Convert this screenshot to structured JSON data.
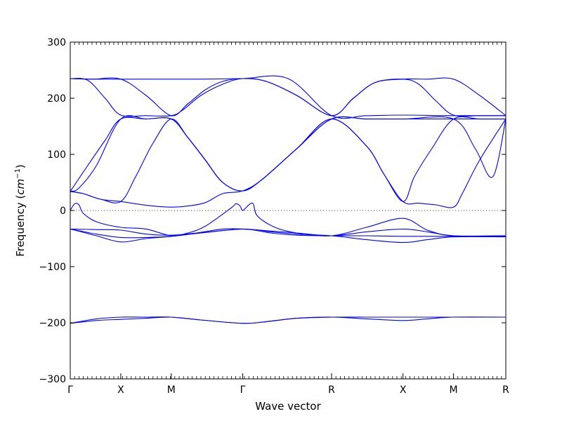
{
  "chart_data": {
    "type": "line",
    "title": "",
    "xlabel": "Wave vector",
    "ylabel_prefix": "Frequency (",
    "ylabel_math": "cm",
    "ylabel_sup": "−1",
    "ylabel_suffix": ")",
    "ylim": [
      -300,
      300
    ],
    "yticks": [
      300,
      200,
      100,
      0,
      -100,
      -200,
      -300
    ],
    "ytick_labels": [
      "300",
      "200",
      "100",
      "0",
      "−100",
      "−200",
      "−300"
    ],
    "xlim": [
      0,
      1.0
    ],
    "high_symmetry_points": [
      {
        "label": "Γ",
        "x": 0.0
      },
      {
        "label": "X",
        "x": 0.116
      },
      {
        "label": "M",
        "x": 0.232
      },
      {
        "label": "Γ",
        "x": 0.396
      },
      {
        "label": "R",
        "x": 0.6
      },
      {
        "label": "X",
        "x": 0.764
      },
      {
        "label": "M",
        "x": 0.88
      },
      {
        "label": "R",
        "x": 1.0
      }
    ],
    "zero_line": {
      "y": 0,
      "style": "dotted"
    },
    "grid": false,
    "line_color": "#0000ff",
    "series": [
      {
        "points": [
          [
            0,
            235
          ],
          [
            0.05,
            234
          ],
          [
            0.116,
            234
          ],
          [
            0.174,
            234
          ],
          [
            0.232,
            234
          ],
          [
            0.3,
            234
          ],
          [
            0.396,
            235
          ],
          [
            0.5,
            235
          ],
          [
            0.6,
            169
          ],
          [
            0.68,
            169
          ],
          [
            0.764,
            170
          ],
          [
            0.88,
            169
          ],
          [
            1.0,
            169
          ]
        ]
      },
      {
        "points": [
          [
            0,
            235
          ],
          [
            0.04,
            232
          ],
          [
            0.08,
            200
          ],
          [
            0.116,
            170
          ],
          [
            0.174,
            169
          ],
          [
            0.232,
            169
          ],
          [
            0.26,
            180
          ],
          [
            0.3,
            205
          ],
          [
            0.35,
            225
          ],
          [
            0.396,
            235
          ],
          [
            0.45,
            230
          ],
          [
            0.52,
            205
          ],
          [
            0.6,
            169
          ],
          [
            0.65,
            200
          ],
          [
            0.7,
            228
          ],
          [
            0.764,
            234
          ],
          [
            0.82,
            234
          ],
          [
            0.88,
            234
          ],
          [
            0.94,
            205
          ],
          [
            1.0,
            169
          ]
        ]
      },
      {
        "points": [
          [
            0,
            235
          ],
          [
            0.05,
            234
          ],
          [
            0.116,
            234
          ],
          [
            0.174,
            205
          ],
          [
            0.232,
            169
          ],
          [
            0.27,
            190
          ],
          [
            0.31,
            215
          ],
          [
            0.35,
            230
          ],
          [
            0.396,
            235
          ],
          [
            0.45,
            230
          ],
          [
            0.52,
            205
          ],
          [
            0.6,
            169
          ],
          [
            0.65,
            200
          ],
          [
            0.7,
            228
          ],
          [
            0.764,
            234
          ],
          [
            0.8,
            225
          ],
          [
            0.84,
            195
          ],
          [
            0.88,
            170
          ],
          [
            0.94,
            169
          ],
          [
            1.0,
            169
          ]
        ]
      },
      {
        "points": [
          [
            0,
            34
          ],
          [
            0.04,
            80
          ],
          [
            0.08,
            125
          ],
          [
            0.116,
            163
          ],
          [
            0.174,
            163
          ],
          [
            0.232,
            163
          ],
          [
            0.27,
            130
          ],
          [
            0.31,
            90
          ],
          [
            0.35,
            50
          ],
          [
            0.396,
            35
          ],
          [
            0.44,
            55
          ],
          [
            0.52,
            110
          ],
          [
            0.6,
            163
          ],
          [
            0.68,
            163
          ],
          [
            0.764,
            163
          ],
          [
            0.88,
            163
          ],
          [
            1.0,
            163
          ]
        ]
      },
      {
        "points": [
          [
            0,
            34
          ],
          [
            0.02,
            40
          ],
          [
            0.06,
            80
          ],
          [
            0.116,
            163
          ],
          [
            0.174,
            163
          ],
          [
            0.232,
            163
          ],
          [
            0.27,
            130
          ],
          [
            0.31,
            90
          ],
          [
            0.35,
            50
          ],
          [
            0.396,
            35
          ],
          [
            0.44,
            55
          ],
          [
            0.52,
            110
          ],
          [
            0.6,
            163
          ],
          [
            0.68,
            115
          ],
          [
            0.72,
            65
          ],
          [
            0.764,
            16
          ],
          [
            0.79,
            60
          ],
          [
            0.83,
            110
          ],
          [
            0.88,
            163
          ],
          [
            0.94,
            163
          ],
          [
            1.0,
            163
          ]
        ]
      },
      {
        "points": [
          [
            0,
            34
          ],
          [
            0.03,
            30
          ],
          [
            0.07,
            20
          ],
          [
            0.116,
            16
          ],
          [
            0.15,
            60
          ],
          [
            0.19,
            120
          ],
          [
            0.232,
            163
          ],
          [
            0.27,
            130
          ],
          [
            0.31,
            90
          ],
          [
            0.35,
            50
          ],
          [
            0.396,
            35
          ],
          [
            0.44,
            55
          ],
          [
            0.52,
            110
          ],
          [
            0.6,
            163
          ],
          [
            0.68,
            163
          ],
          [
            0.764,
            163
          ],
          [
            0.88,
            163
          ],
          [
            0.93,
            110
          ],
          [
            0.97,
            60
          ],
          [
            1.0,
            163
          ]
        ]
      },
      {
        "points": [
          [
            0,
            34
          ],
          [
            0.03,
            30
          ],
          [
            0.07,
            20
          ],
          [
            0.116,
            16
          ],
          [
            0.15,
            12
          ],
          [
            0.19,
            8
          ],
          [
            0.232,
            6
          ],
          [
            0.27,
            8
          ],
          [
            0.31,
            14
          ],
          [
            0.35,
            30
          ],
          [
            0.396,
            35
          ],
          [
            0.44,
            55
          ],
          [
            0.52,
            110
          ],
          [
            0.6,
            163
          ],
          [
            0.68,
            115
          ],
          [
            0.72,
            65
          ],
          [
            0.764,
            16
          ],
          [
            0.8,
            13
          ],
          [
            0.84,
            10
          ],
          [
            0.88,
            6
          ],
          [
            0.9,
            30
          ],
          [
            0.94,
            90
          ],
          [
            1.0,
            163
          ]
        ]
      },
      {
        "points": [
          [
            0,
            0
          ],
          [
            0.01,
            12
          ],
          [
            0.02,
            10
          ],
          [
            0.03,
            -5
          ],
          [
            0.06,
            -20
          ],
          [
            0.116,
            -30
          ],
          [
            0.174,
            -33
          ],
          [
            0.232,
            -45
          ],
          [
            0.27,
            -40
          ],
          [
            0.31,
            -28
          ],
          [
            0.37,
            5
          ],
          [
            0.38,
            12
          ],
          [
            0.39,
            8
          ],
          [
            0.396,
            0
          ],
          [
            0.41,
            10
          ],
          [
            0.42,
            12
          ],
          [
            0.43,
            -10
          ],
          [
            0.47,
            -30
          ],
          [
            0.52,
            -40
          ],
          [
            0.6,
            -45
          ],
          [
            0.68,
            -30
          ],
          [
            0.764,
            -14
          ],
          [
            0.82,
            -35
          ],
          [
            0.88,
            -45
          ],
          [
            1.0,
            -45
          ]
        ]
      },
      {
        "points": [
          [
            0,
            -33
          ],
          [
            0.06,
            -34
          ],
          [
            0.116,
            -35
          ],
          [
            0.174,
            -42
          ],
          [
            0.232,
            -44
          ],
          [
            0.29,
            -40
          ],
          [
            0.35,
            -33
          ],
          [
            0.396,
            -33
          ],
          [
            0.45,
            -36
          ],
          [
            0.52,
            -40
          ],
          [
            0.6,
            -45
          ],
          [
            0.68,
            -38
          ],
          [
            0.764,
            -33
          ],
          [
            0.82,
            -38
          ],
          [
            0.88,
            -45
          ],
          [
            1.0,
            -45
          ]
        ]
      },
      {
        "points": [
          [
            0,
            -33
          ],
          [
            0.06,
            -45
          ],
          [
            0.116,
            -56
          ],
          [
            0.174,
            -50
          ],
          [
            0.232,
            -46
          ],
          [
            0.3,
            -40
          ],
          [
            0.396,
            -33
          ],
          [
            0.46,
            -38
          ],
          [
            0.52,
            -42
          ],
          [
            0.6,
            -45
          ],
          [
            0.68,
            -52
          ],
          [
            0.764,
            -57
          ],
          [
            0.82,
            -52
          ],
          [
            0.88,
            -47
          ],
          [
            1.0,
            -47
          ]
        ]
      },
      {
        "points": [
          [
            0,
            -33
          ],
          [
            0.06,
            -42
          ],
          [
            0.116,
            -48
          ],
          [
            0.174,
            -48
          ],
          [
            0.232,
            -46
          ],
          [
            0.3,
            -40
          ],
          [
            0.396,
            -33
          ],
          [
            0.46,
            -40
          ],
          [
            0.52,
            -44
          ],
          [
            0.6,
            -45
          ],
          [
            0.68,
            -45
          ],
          [
            0.764,
            -46
          ],
          [
            0.82,
            -46
          ],
          [
            0.88,
            -46
          ],
          [
            1.0,
            -46
          ]
        ]
      },
      {
        "points": [
          [
            0,
            -201
          ],
          [
            0.06,
            -196
          ],
          [
            0.116,
            -194
          ],
          [
            0.174,
            -192
          ],
          [
            0.232,
            -190
          ],
          [
            0.3,
            -195
          ],
          [
            0.396,
            -201
          ],
          [
            0.45,
            -198
          ],
          [
            0.52,
            -192
          ],
          [
            0.6,
            -190
          ],
          [
            0.68,
            -193
          ],
          [
            0.764,
            -196
          ],
          [
            0.82,
            -193
          ],
          [
            0.88,
            -190
          ],
          [
            1.0,
            -190
          ]
        ]
      },
      {
        "points": [
          [
            0,
            -201
          ],
          [
            0.06,
            -193
          ],
          [
            0.116,
            -190
          ],
          [
            0.174,
            -190
          ],
          [
            0.232,
            -190
          ],
          [
            0.3,
            -195
          ],
          [
            0.396,
            -201
          ],
          [
            0.45,
            -198
          ],
          [
            0.52,
            -192
          ],
          [
            0.6,
            -190
          ],
          [
            0.68,
            -190
          ],
          [
            0.764,
            -190
          ],
          [
            0.82,
            -190
          ],
          [
            0.88,
            -190
          ],
          [
            1.0,
            -190
          ]
        ]
      }
    ]
  }
}
